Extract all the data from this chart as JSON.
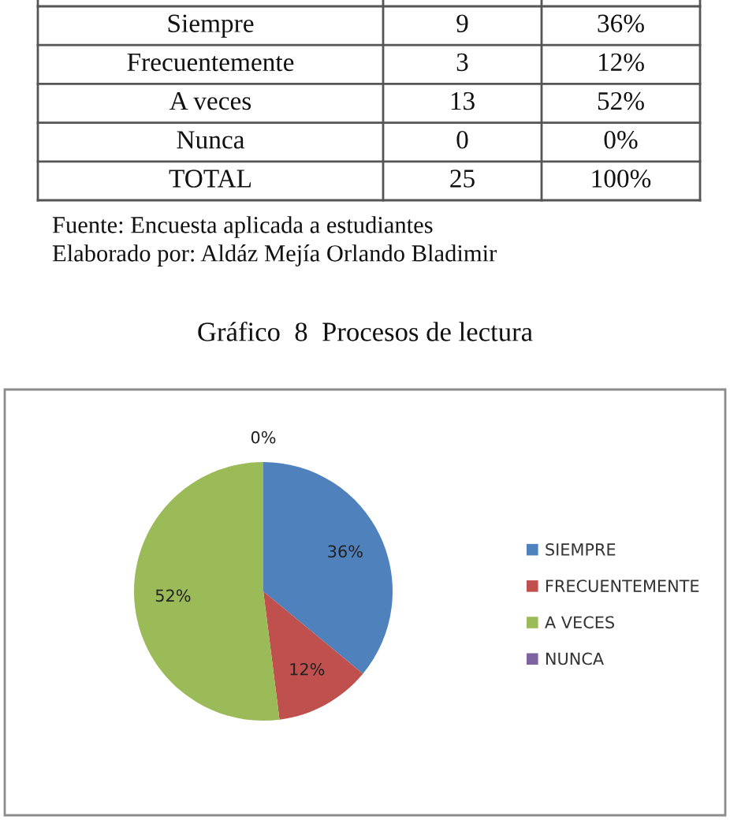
{
  "chart_data": [
    {
      "type": "other",
      "categories": [
        "Siempre",
        "Frecuentemente",
        "A veces",
        "Nunca",
        "TOTAL"
      ],
      "series": [
        {
          "values": [
            9,
            3,
            13,
            0,
            25
          ]
        },
        {
          "values": [
            36,
            12,
            52,
            0,
            100
          ],
          "value_labels": [
            "36%",
            "12%",
            "52%",
            "0%",
            "100%"
          ]
        }
      ],
      "data_labels": true,
      "annotations": [
        "Fuente: Encuesta aplicada a estudiantes",
        "Elaborado por: Aldáz Mejía Orlando Bladimir"
      ]
    },
    {
      "type": "pie",
      "title": "Gráfico  8  Procesos de lectura",
      "categories": [
        "SIEMPRE",
        "FRECUENTEMENTE",
        "A VECES",
        "NUNCA"
      ],
      "values": [
        36,
        12,
        52,
        0
      ],
      "colors": [
        "#4f81bd",
        "#c0504d",
        "#9bbb59",
        "#8064a2"
      ],
      "value_labels": [
        "36%",
        "12%",
        "52%",
        "0%"
      ],
      "legend": "right"
    }
  ]
}
